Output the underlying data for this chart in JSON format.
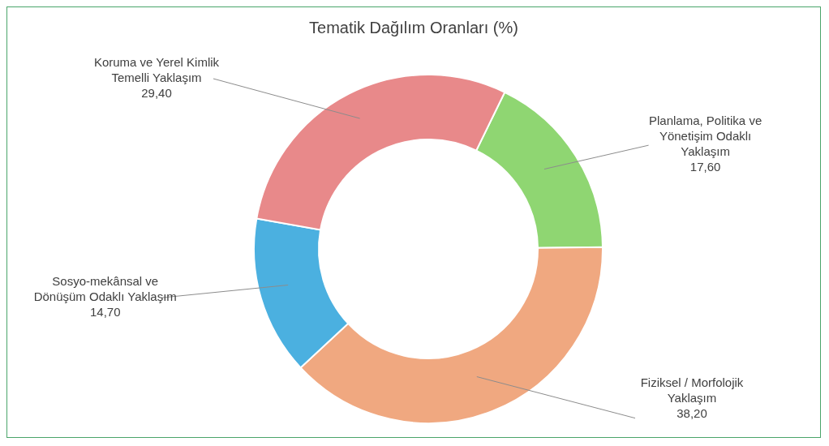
{
  "chart_data": {
    "type": "donut",
    "title": "Tematik Dağılım Oranları (%)",
    "categories": [
      "Planlama, Politika ve Yönetişim Odaklı Yaklaşım",
      "Fiziksel / Morfolojik Yaklaşım",
      "Sosyo-mekânsal ve Dönüşüm Odaklı Yaklaşım",
      "Koruma ve Yerel Kimlik Temelli Yaklaşım"
    ],
    "values": [
      17.6,
      38.2,
      14.7,
      29.4
    ],
    "value_labels": [
      "17,60",
      "38,20",
      "14,70",
      "29,40"
    ],
    "colors": [
      "#8fd672",
      "#f0a880",
      "#4bb0e0",
      "#e8898a"
    ],
    "legend": false
  }
}
